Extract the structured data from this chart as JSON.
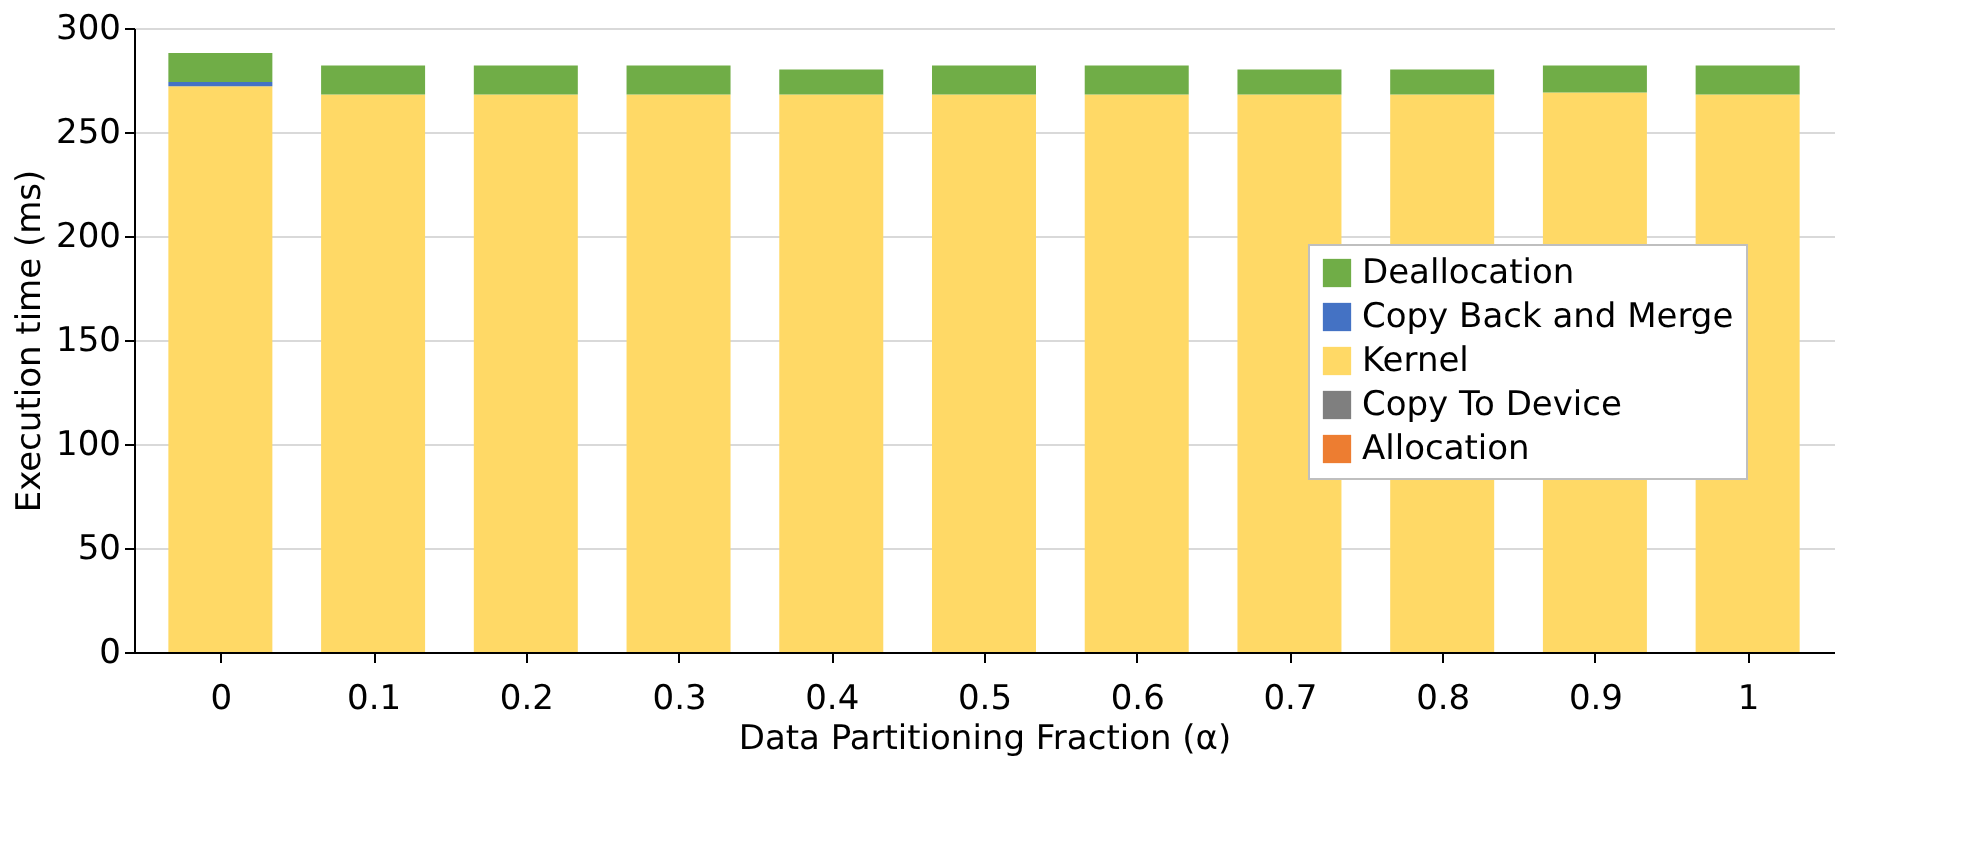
{
  "chart_data": {
    "type": "bar",
    "stacked": true,
    "xlabel": "Data Partitioning Fraction (α)",
    "ylabel": "Execution time (ms)",
    "categories": [
      "0",
      "0.1",
      "0.2",
      "0.3",
      "0.4",
      "0.5",
      "0.6",
      "0.7",
      "0.8",
      "0.9",
      "1"
    ],
    "series": [
      {
        "name": "Allocation",
        "color": "#ed7d31",
        "values": [
          0,
          0,
          0,
          0,
          0,
          0,
          0,
          0,
          0,
          0,
          0
        ]
      },
      {
        "name": "Copy To Device",
        "color": "#7f7f7f",
        "values": [
          0,
          0,
          0,
          0,
          0,
          0,
          0,
          0,
          0,
          0,
          0
        ]
      },
      {
        "name": "Kernel",
        "color": "#ffd966",
        "values": [
          272,
          268,
          268,
          268,
          268,
          268,
          268,
          268,
          268,
          269,
          268
        ]
      },
      {
        "name": "Copy Back and Merge",
        "color": "#4472c4",
        "values": [
          2,
          0,
          0,
          0,
          0,
          0,
          0,
          0,
          0,
          0,
          0
        ]
      },
      {
        "name": "Deallocation",
        "color": "#70ad47",
        "values": [
          14,
          14,
          14,
          14,
          12,
          14,
          14,
          12,
          12,
          13,
          14
        ]
      }
    ],
    "ylim": [
      0,
      300
    ],
    "yticks": [
      0,
      50,
      100,
      150,
      200,
      250,
      300
    ],
    "grid": "y",
    "legend": "right"
  }
}
